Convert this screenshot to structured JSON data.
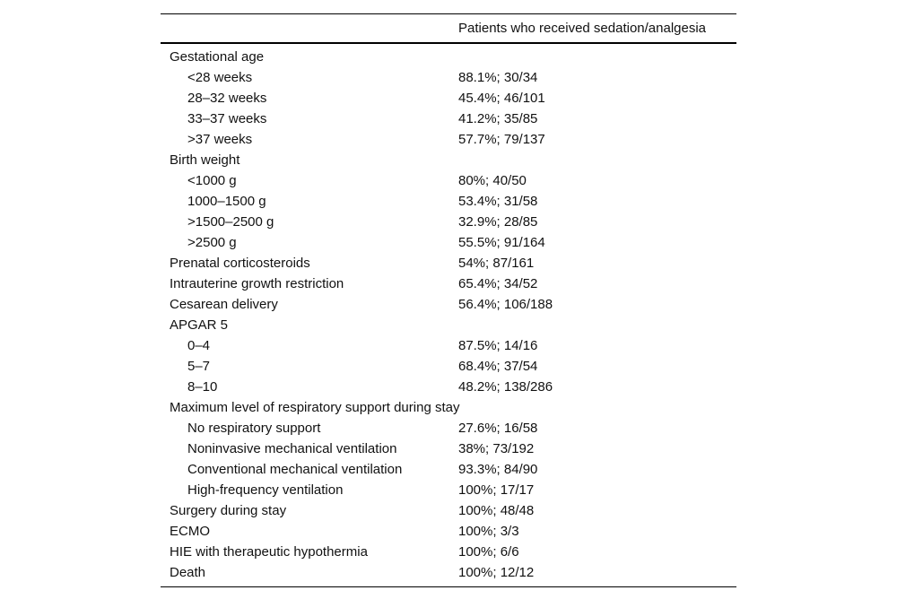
{
  "table": {
    "header": {
      "label_col": "",
      "value_col": "Patients who received sedation/analgesia"
    },
    "rows": [
      {
        "label": "Gestational age",
        "value": "",
        "level": 0
      },
      {
        "label": "<28 weeks",
        "value": "88.1%; 30/34",
        "level": 1
      },
      {
        "label": "28–32 weeks",
        "value": "45.4%; 46/101",
        "level": 1
      },
      {
        "label": "33–37 weeks",
        "value": "41.2%; 35/85",
        "level": 1
      },
      {
        "label": ">37 weeks",
        "value": "57.7%; 79/137",
        "level": 1
      },
      {
        "label": "Birth weight",
        "value": "",
        "level": 0
      },
      {
        "label": "<1000 g",
        "value": "80%; 40/50",
        "level": 1
      },
      {
        "label": "1000–1500 g",
        "value": "53.4%; 31/58",
        "level": 1
      },
      {
        "label": ">1500–2500 g",
        "value": "32.9%; 28/85",
        "level": 1
      },
      {
        "label": ">2500 g",
        "value": "55.5%; 91/164",
        "level": 1
      },
      {
        "label": "Prenatal corticosteroids",
        "value": "54%; 87/161",
        "level": 0
      },
      {
        "label": "Intrauterine growth restriction",
        "value": "65.4%; 34/52",
        "level": 0
      },
      {
        "label": "Cesarean delivery",
        "value": "56.4%; 106/188",
        "level": 0
      },
      {
        "label": "APGAR 5",
        "value": "",
        "level": 0
      },
      {
        "label": "0–4",
        "value": "87.5%; 14/16",
        "level": 1
      },
      {
        "label": "5–7",
        "value": "68.4%; 37/54",
        "level": 1
      },
      {
        "label": "8–10",
        "value": "48.2%; 138/286",
        "level": 1
      },
      {
        "label": "Maximum level of respiratory support during stay",
        "value": "",
        "level": 0
      },
      {
        "label": "No respiratory support",
        "value": "27.6%; 16/58",
        "level": 1
      },
      {
        "label": "Noninvasive mechanical ventilation",
        "value": "38%; 73/192",
        "level": 1
      },
      {
        "label": "Conventional mechanical ventilation",
        "value": "93.3%; 84/90",
        "level": 1
      },
      {
        "label": "High-frequency ventilation",
        "value": "100%; 17/17",
        "level": 1
      },
      {
        "label": "Surgery during stay",
        "value": "100%; 48/48",
        "level": 0
      },
      {
        "label": "ECMO",
        "value": "100%; 3/3",
        "level": 0
      },
      {
        "label": "HIE with therapeutic hypothermia",
        "value": "100%; 6/6",
        "level": 0
      },
      {
        "label": "Death",
        "value": "100%; 12/12",
        "level": 0
      }
    ]
  }
}
